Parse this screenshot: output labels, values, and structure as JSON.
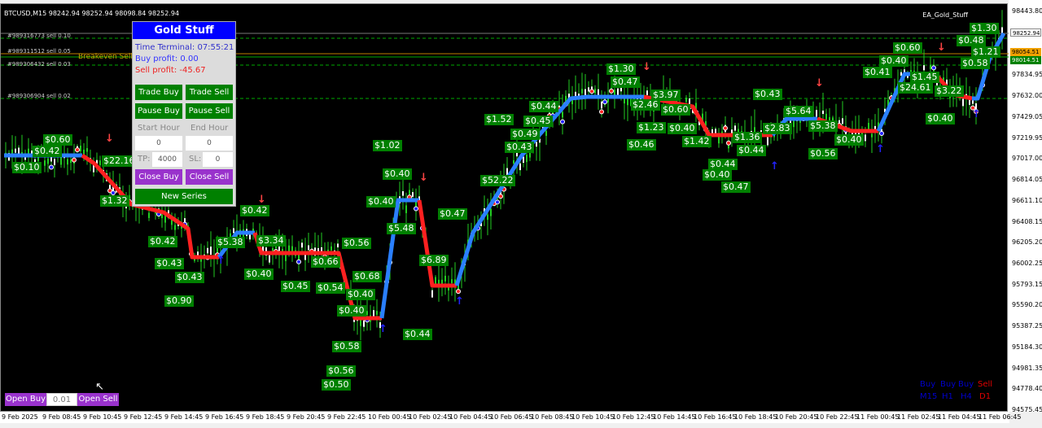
{
  "chart": {
    "symbol_line": "BTCUSD,M15  98242.94 98252.94 98098.84 98252.94",
    "ea_name": "EA_Gold_Stuff",
    "orders": [
      "#989316773 sell 0.10",
      "#989311512 sell 0.05",
      "#989306432 sell 0.03",
      "#989306904 sell 0.02"
    ],
    "breakeven_label": "Breakeven Sell",
    "price_ticks": [
      "98443.80",
      "97834.95",
      "97632.00",
      "97429.05",
      "97219.95",
      "97017.00",
      "96814.05",
      "96611.10",
      "96408.15",
      "96205.20",
      "96002.25",
      "95793.15",
      "95590.20",
      "95387.25",
      "95184.30",
      "94981.35",
      "94778.40",
      "94575.45"
    ],
    "current_price": "98252.94",
    "breakeven_price": "98054.51",
    "green_price": "98014.51",
    "time_ticks": [
      "9 Feb 2025",
      "9 Feb 08:45",
      "9 Feb 10:45",
      "9 Feb 12:45",
      "9 Feb 14:45",
      "9 Feb 16:45",
      "9 Feb 18:45",
      "9 Feb 20:45",
      "9 Feb 22:45",
      "10 Feb 00:45",
      "10 Feb 02:45",
      "10 Feb 04:45",
      "10 Feb 06:45",
      "10 Feb 08:45",
      "10 Feb 10:45",
      "10 Feb 12:45",
      "10 Feb 14:45",
      "10 Feb 16:45",
      "10 Feb 18:45",
      "10 Feb 20:45",
      "10 Feb 22:45",
      "11 Feb 00:45",
      "11 Feb 02:45",
      "11 Feb 04:45",
      "11 Feb 06:45"
    ],
    "profit_labels": [
      "$0.60",
      "$0.42",
      "$0.10",
      "$22.16",
      "$1.32",
      "$0.43",
      "$0.43",
      "$0.90",
      "$0.42",
      "$5.38",
      "$0.42",
      "$3.34",
      "$0.40",
      "$0.45",
      "$0.66",
      "$0.54",
      "$0.56",
      "$0.68",
      "$0.40",
      "$0.40",
      "$0.58",
      "$0.56",
      "$0.50",
      "$1.02",
      "$0.40",
      "$0.40",
      "$5.48",
      "$6.89",
      "$0.44",
      "$0.47",
      "$52.22",
      "$1.52",
      "$0.45",
      "$0.44",
      "$0.49",
      "$0.43",
      "$1.30",
      "$0.47",
      "$2.46",
      "$0.60",
      "$3.97",
      "$1.23",
      "$0.40",
      "$1.42",
      "$0.46",
      "$0.44",
      "$0.47",
      "$0.40",
      "$0.43",
      "$1.36",
      "$0.44",
      "$2.83",
      "$5.64",
      "$5.38",
      "$0.56",
      "$0.40",
      "$0.60",
      "$0.40",
      "$0.41",
      "$1.45",
      "$24.61",
      "$3.22",
      "$0.40",
      "$1.30",
      "$0.48",
      "$1.21",
      "$0.58"
    ],
    "colors": {
      "buy": "#2a7fff",
      "sell": "#ff2020",
      "label_bg": "#008000"
    }
  },
  "panel": {
    "title": "Gold Stuff",
    "time_terminal": "Time Terminal: 07:55:21",
    "buy_profit": "Buy profit: 0.00",
    "sell_profit": "Sell profit: -45.67",
    "trade_buy": "Trade Buy",
    "trade_sell": "Trade Sell",
    "pause_buy": "Pause Buy",
    "pause_sell": "Pause Sell",
    "start_hour_label": "Start Hour",
    "end_hour_label": "End Hour",
    "start_hour": "0",
    "end_hour": "0",
    "tp_label": "TP:",
    "tp": "4000",
    "sl_label": "SL:",
    "sl": "0",
    "close_buy": "Close Buy",
    "close_sell": "Close Sell",
    "new_series": "New Series"
  },
  "mtf": {
    "signals": [
      "Buy",
      "Buy",
      "Buy",
      "Sell"
    ],
    "timeframes": [
      "M15",
      "H1",
      "H4",
      "D1"
    ]
  },
  "quick": {
    "open_buy": "Open Buy",
    "lot": "0.01",
    "open_sell": "Open Sell"
  }
}
